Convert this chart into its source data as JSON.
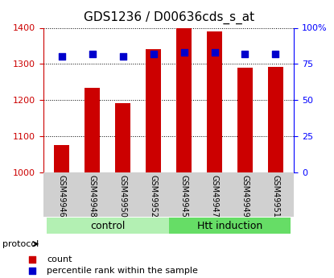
{
  "title": "GDS1236 / D00636cds_s_at",
  "samples": [
    "GSM49946",
    "GSM49948",
    "GSM49950",
    "GSM49952",
    "GSM49945",
    "GSM49947",
    "GSM49949",
    "GSM49951"
  ],
  "counts": [
    1075,
    1235,
    1192,
    1340,
    1398,
    1390,
    1290,
    1292
  ],
  "percentiles": [
    80,
    82,
    80,
    82,
    83,
    83,
    82,
    82
  ],
  "groups": [
    {
      "label": "control",
      "start": 0,
      "end": 4,
      "color": "#b3f0b3"
    },
    {
      "label": "Htt induction",
      "start": 4,
      "end": 8,
      "color": "#66dd66"
    }
  ],
  "bar_color": "#cc0000",
  "dot_color": "#0000cc",
  "ylim_left": [
    1000,
    1400
  ],
  "ylim_right": [
    0,
    100
  ],
  "yticks_left": [
    1000,
    1100,
    1200,
    1300,
    1400
  ],
  "yticks_right": [
    0,
    25,
    50,
    75,
    100
  ],
  "ytick_labels_right": [
    "0",
    "25",
    "50",
    "75",
    "100%"
  ],
  "bar_width": 0.5,
  "background_color": "#ffffff",
  "plot_bg_color": "#ffffff",
  "grid_color": "#000000",
  "tick_label_area_color": "#d0d0d0",
  "group_label_fontsize": 9,
  "title_fontsize": 11
}
